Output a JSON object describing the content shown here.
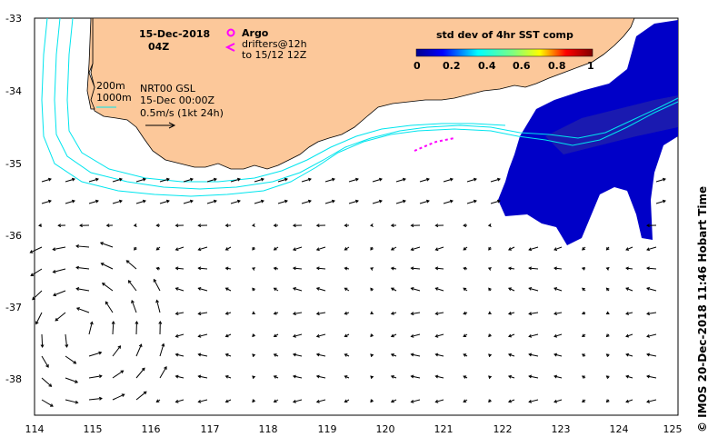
{
  "header": {
    "date": "15-Dec-2018",
    "time": "04Z"
  },
  "legend": {
    "argo_label": "Argo",
    "drifters_line1": "drifters@12h",
    "drifters_line2": "to 15/12 12Z",
    "argo_color": "#ff00ff",
    "drifter_color": "#ff00ff"
  },
  "colorbar": {
    "title": "std dev of 4hr SST comp",
    "ticks": [
      "0",
      "0.2",
      "0.4",
      "0.6",
      "0.8",
      "1"
    ]
  },
  "isobaths": {
    "label_200": "200m",
    "label_1000": "1000m",
    "color": "#00e5ee"
  },
  "currents": {
    "source": "NRT00 GSL",
    "datetime": "15-Dec 00:00Z",
    "scale": "0.5m/s (1kt 24h)"
  },
  "axes": {
    "lon_ticks": [
      "114",
      "115",
      "116",
      "117",
      "118",
      "119",
      "120",
      "121",
      "122",
      "123",
      "124",
      "125"
    ],
    "lat_ticks": [
      "-33",
      "-34",
      "-35",
      "-36",
      "-37",
      "-38"
    ]
  },
  "credit": "© IMOS 20-Dec-2018 11:46 Hobart Time",
  "colors": {
    "land": "#fcc89a",
    "sst_dark": "#0000c8",
    "sst_mid": "#1e1eb4"
  }
}
